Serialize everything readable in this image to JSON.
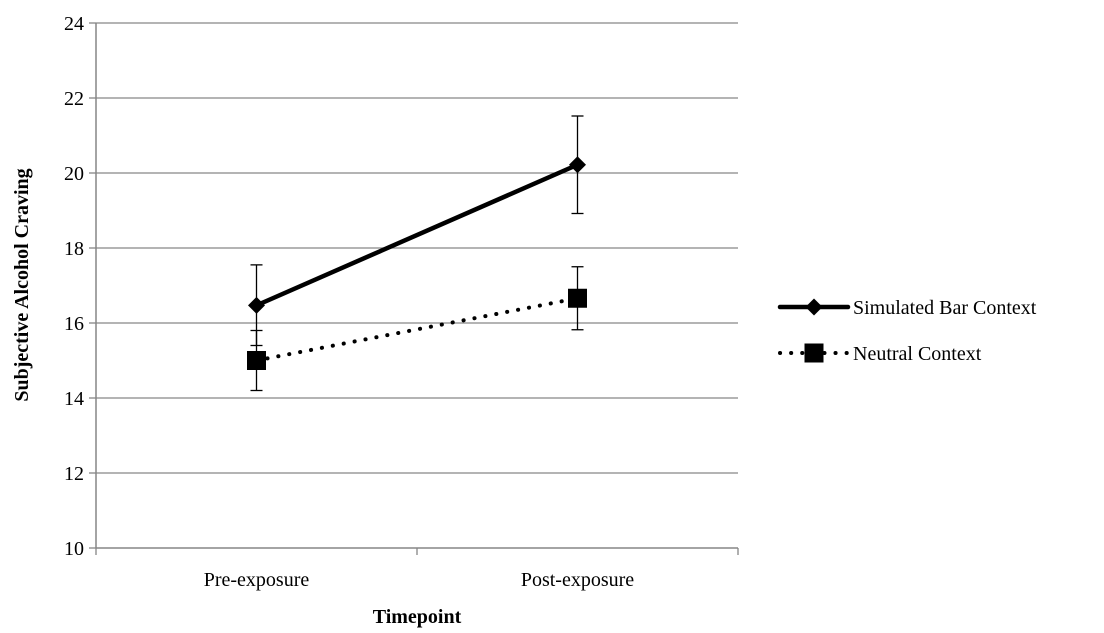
{
  "chart_data": {
    "type": "line",
    "title": "",
    "xlabel": "Timepoint",
    "ylabel": "Subjective Alcohol Craving",
    "categories": [
      "Pre-exposure",
      "Post-exposure"
    ],
    "ylim": [
      10,
      24
    ],
    "yticks": [
      10,
      12,
      14,
      16,
      18,
      20,
      22,
      24
    ],
    "grid": "horizontal",
    "legend_position": "right",
    "series": [
      {
        "name": "Simulated Bar Context",
        "values": [
          16.47,
          20.22
        ],
        "error": [
          [
            15.4,
            17.55
          ],
          [
            18.92,
            21.52
          ]
        ],
        "line_style": "solid",
        "marker": "diamond",
        "color": "#000000"
      },
      {
        "name": "Neutral Context",
        "values": [
          15.0,
          16.66
        ],
        "error": [
          [
            14.2,
            15.8
          ],
          [
            15.82,
            17.5
          ]
        ],
        "line_style": "dotted",
        "marker": "square",
        "color": "#000000"
      }
    ]
  }
}
